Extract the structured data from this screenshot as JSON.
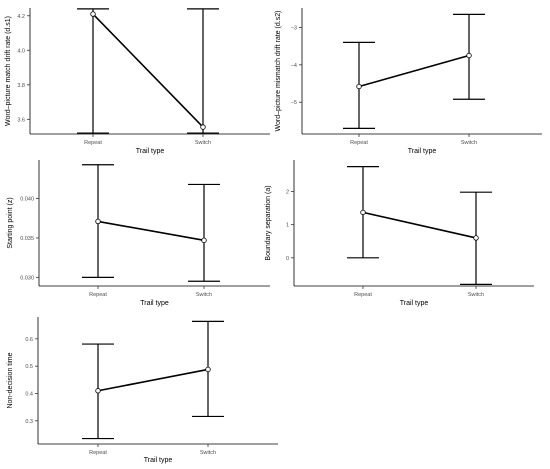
{
  "chart_data": [
    {
      "type": "line",
      "categories": [
        "Repeat",
        "Switch"
      ],
      "series": [
        {
          "values": [
            4.21,
            3.555
          ],
          "lower": [
            3.52,
            3.52
          ],
          "upper": [
            4.24,
            4.24
          ]
        }
      ],
      "xlabel": "Trail type",
      "ylabel": "Word–picture match drift rate (d.s1)",
      "ylim": [
        3.515,
        4.245
      ],
      "yticks": [
        3.6,
        3.8,
        4.0,
        4.2
      ],
      "ytick_labels": [
        "3.6",
        "3.8",
        "4.0",
        "4.2"
      ],
      "grid": false
    },
    {
      "type": "line",
      "categories": [
        "Repeat",
        "Switch"
      ],
      "series": [
        {
          "values": [
            -4.58,
            -3.75
          ],
          "lower": [
            -5.7,
            -4.92
          ],
          "upper": [
            -3.4,
            -2.65
          ]
        }
      ],
      "xlabel": "Trail type",
      "ylabel": "Word–picture mismatch drift rate (d.s2)",
      "ylim": [
        -5.85,
        -2.48
      ],
      "yticks": [
        -3,
        -4,
        -5
      ],
      "ytick_labels": [
        "−3",
        "−4",
        "−5"
      ],
      "grid": false
    },
    {
      "type": "line",
      "categories": [
        "Repeat",
        "Switch"
      ],
      "series": [
        {
          "values": [
            0.0371,
            0.0347
          ],
          "lower": [
            0.03,
            0.0295
          ],
          "upper": [
            0.0443,
            0.0418
          ]
        }
      ],
      "xlabel": "Trail type",
      "ylabel": "Starting point (z)",
      "ylim": [
        0.0289,
        0.0449
      ],
      "yticks": [
        0.03,
        0.035,
        0.04
      ],
      "ytick_labels": [
        "0.030",
        "0.035",
        "0.040"
      ],
      "grid": false
    },
    {
      "type": "line",
      "categories": [
        "Repeat",
        "Switch"
      ],
      "series": [
        {
          "values": [
            1.37,
            0.6
          ],
          "lower": [
            0.0,
            -0.8
          ],
          "upper": [
            2.75,
            1.98
          ]
        }
      ],
      "xlabel": "Trail type",
      "ylabel": "Boundary separation (a)",
      "ylim": [
        -0.85,
        2.95
      ],
      "yticks": [
        0,
        1,
        2
      ],
      "ytick_labels": [
        "0",
        "1",
        "2"
      ],
      "grid": false
    },
    {
      "type": "line",
      "categories": [
        "Repeat",
        "Switch"
      ],
      "series": [
        {
          "values": [
            0.41,
            0.488
          ],
          "lower": [
            0.235,
            0.316
          ],
          "upper": [
            0.581,
            0.664
          ]
        }
      ],
      "xlabel": "Trail type",
      "ylabel": "Non-decision time",
      "ylim": [
        0.215,
        0.68
      ],
      "yticks": [
        0.3,
        0.4,
        0.5,
        0.6
      ],
      "ytick_labels": [
        "0.3",
        "0.4",
        "0.5",
        "0.6"
      ],
      "grid": false
    }
  ]
}
